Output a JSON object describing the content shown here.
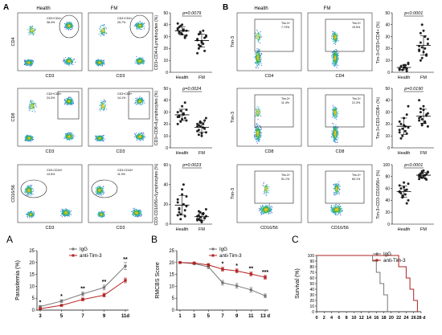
{
  "panel_letters": {
    "top_A": "A",
    "top_B": "B",
    "bottom_A": "A",
    "bottom_B": "B",
    "bottom_C": "C"
  },
  "flow": {
    "cd4": {
      "left_title": "Health",
      "right_title": "FM",
      "gate_label": "CD3+CD4+",
      "left_pct": "38.4%",
      "right_pct": "25.7%",
      "x_label": "CD3",
      "y_label": "CD4"
    },
    "cd8": {
      "gate_label": "CD3+CD8+",
      "left_pct": "24.3%",
      "right_pct": "14.1%",
      "x_label": "CD3",
      "y_label": "CD8"
    },
    "cd1656": {
      "gate_label": "CD3-CD16+",
      "left_pct": "13.5%",
      "right_pct": "11.0%",
      "x_label": "CD3",
      "y_label": "CD16/56"
    },
    "tim_cd4": {
      "left_title": "Health",
      "right_title": "FM",
      "gate_label": "Tim-3+",
      "left_pct": "7.73%",
      "right_pct": "19.5%",
      "x_label": "CD4",
      "y_label": "Tim-3"
    },
    "tim_cd8": {
      "gate_label": "Tim-3+",
      "left_pct": "11.4%",
      "right_pct": "21.3%",
      "x_label": "CD8",
      "y_label": "Tim-3"
    },
    "tim_cd1656": {
      "gate_label": "Tim-3+",
      "left_pct": "51.1%",
      "right_pct": "83.1%",
      "x_label": "CD16/56",
      "y_label": "Tim-3"
    }
  },
  "chart_data": [
    {
      "type": "scatter",
      "id": "dot1",
      "ylabel": "CD3+CD4+/Lymphocytes (%)",
      "categories": [
        "Health",
        "FM"
      ],
      "pvalue": "p=0.0079",
      "ylim": [
        0,
        50
      ],
      "yticks": [
        "0",
        "10",
        "20",
        "30",
        "40",
        "50"
      ],
      "series": [
        {
          "values": [
            36,
            38,
            33,
            40,
            35,
            29,
            31,
            37,
            34,
            39,
            32,
            36,
            30,
            35,
            41,
            33
          ]
        },
        {
          "values": [
            28,
            32,
            22,
            25,
            35,
            18,
            30,
            27,
            20,
            33,
            26,
            24,
            29,
            31,
            16,
            23,
            34
          ]
        }
      ]
    },
    {
      "type": "scatter",
      "id": "dot2",
      "ylabel": "CD3+CD8+/Lymphocytes (%)",
      "categories": [
        "Health",
        "FM"
      ],
      "pvalue": "p=0.0024",
      "ylim": [
        0,
        50
      ],
      "yticks": [
        "0",
        "10",
        "20",
        "30",
        "40",
        "50"
      ],
      "series": [
        {
          "values": [
            30,
            26,
            22,
            35,
            28,
            25,
            32,
            20,
            27,
            31,
            24,
            29,
            38,
            23,
            26
          ]
        },
        {
          "values": [
            18,
            15,
            22,
            12,
            20,
            16,
            25,
            14,
            19,
            21,
            10,
            17,
            23,
            13,
            20,
            11,
            18
          ]
        }
      ]
    },
    {
      "type": "scatter",
      "id": "dot3",
      "ylabel": "CD3-CD16/56+/Lymphocytes (%)",
      "categories": [
        "Health",
        "FM"
      ],
      "pvalue": "p=0.0023",
      "ylim": [
        0,
        60
      ],
      "yticks": [
        "0",
        "20",
        "40",
        "60"
      ],
      "series": [
        {
          "values": [
            22,
            15,
            10,
            30,
            40,
            8,
            18,
            25,
            12,
            5,
            35,
            20,
            14,
            28,
            9,
            16
          ]
        },
        {
          "values": [
            8,
            5,
            12,
            3,
            10,
            6,
            15,
            4,
            9,
            7,
            2,
            11,
            6,
            8,
            5,
            13,
            4
          ]
        }
      ]
    },
    {
      "type": "scatter",
      "id": "dot4",
      "ylabel": "Tim-3+CD3+CD4+ (%)",
      "categories": [
        "Health",
        "FM"
      ],
      "pvalue": "p<0.0001",
      "ylim": [
        0,
        50
      ],
      "yticks": [
        "0",
        "10",
        "20",
        "30",
        "40",
        "50"
      ],
      "series": [
        {
          "values": [
            3,
            5,
            2,
            6,
            4,
            1,
            7,
            3,
            5,
            2,
            4,
            6,
            3,
            8,
            2
          ]
        },
        {
          "values": [
            18,
            25,
            12,
            35,
            20,
            15,
            28,
            22,
            10,
            40,
            17,
            30,
            14,
            24,
            19,
            33,
            21
          ]
        }
      ]
    },
    {
      "type": "scatter",
      "id": "dot5",
      "ylabel": "Tim-3+CD3+CD8+ (%)",
      "categories": [
        "Health",
        "FM"
      ],
      "pvalue": "p=0.0190",
      "ylim": [
        0,
        50
      ],
      "yticks": [
        "0",
        "10",
        "20",
        "30",
        "40",
        "50"
      ],
      "series": [
        {
          "values": [
            15,
            20,
            10,
            25,
            18,
            12,
            35,
            22,
            8,
            16,
            19,
            14,
            28,
            17,
            13
          ]
        },
        {
          "values": [
            25,
            30,
            20,
            35,
            22,
            28,
            18,
            40,
            26,
            24,
            32,
            21,
            27,
            29,
            23,
            33,
            19
          ]
        }
      ]
    },
    {
      "type": "scatter",
      "id": "dot6",
      "ylabel": "Tim-3+CD3-CD16/56+ (%)",
      "categories": [
        "Health",
        "FM"
      ],
      "pvalue": "p<0.0001",
      "ylim": [
        0,
        100
      ],
      "yticks": [
        "0",
        "20",
        "40",
        "60",
        "80",
        "100"
      ],
      "series": [
        {
          "values": [
            55,
            60,
            45,
            70,
            50,
            58,
            40,
            65,
            52,
            48,
            62,
            57,
            35,
            68,
            54
          ]
        },
        {
          "values": [
            80,
            85,
            78,
            90,
            82,
            75,
            88,
            83,
            79,
            86,
            81,
            77,
            84,
            87,
            76,
            80,
            89
          ]
        }
      ]
    },
    {
      "type": "line",
      "id": "para",
      "ylabel": "Parasitemia (%)",
      "xlabel": "",
      "x": [
        "3",
        "5",
        "7",
        "9",
        "11d"
      ],
      "ylim": [
        0,
        25
      ],
      "yticks": [
        "0",
        "5",
        "10",
        "15",
        "20",
        "25"
      ],
      "series": [
        {
          "name": "IgG",
          "color": "#777777",
          "values": [
            1.5,
            3.8,
            6.8,
            9.5,
            18.5
          ],
          "err": [
            0.4,
            0.6,
            0.8,
            1.0,
            1.5
          ]
        },
        {
          "name": "anti-Tim-3",
          "color": "#b22222",
          "values": [
            0.6,
            2.0,
            4.5,
            6.3,
            12.5
          ],
          "err": [
            0.3,
            0.4,
            0.6,
            0.8,
            1.0
          ]
        }
      ],
      "annotations": [
        {
          "x": "3",
          "text": "*"
        },
        {
          "x": "5",
          "text": "*"
        },
        {
          "x": "7",
          "text": "**"
        },
        {
          "x": "9",
          "text": "**"
        },
        {
          "x": "11d",
          "text": "**"
        }
      ]
    },
    {
      "type": "line",
      "id": "rmcbs",
      "ylabel": "RMCBS Score",
      "x": [
        "1",
        "3",
        "5",
        "7",
        "9",
        "11",
        "13 d"
      ],
      "ylim": [
        0,
        25
      ],
      "yticks": [
        "0",
        "5",
        "10",
        "15",
        "20",
        "25"
      ],
      "series": [
        {
          "name": "IgG",
          "color": "#777777",
          "values": [
            20,
            19.5,
            18.2,
            11.5,
            10.2,
            8.5,
            6
          ],
          "err": [
            0.3,
            0.4,
            0.8,
            1.0,
            1.0,
            1.0,
            0.8
          ]
        },
        {
          "name": "anti-Tim-3",
          "color": "#b22222",
          "values": [
            20,
            19.8,
            19,
            17.2,
            16.5,
            15.2,
            13.8
          ],
          "err": [
            0.3,
            0.4,
            0.6,
            0.8,
            0.8,
            0.8,
            0.8
          ]
        }
      ],
      "annotations": [
        {
          "x": "7",
          "text": "*"
        },
        {
          "x": "9",
          "text": "*"
        },
        {
          "x": "11",
          "text": "**"
        },
        {
          "x": "13 d",
          "text": "***"
        }
      ]
    },
    {
      "type": "line",
      "id": "surv",
      "ylabel": "Survival (%)",
      "x": [
        "0",
        "2",
        "4",
        "6",
        "8",
        "10",
        "12",
        "14",
        "16",
        "18",
        "20",
        "22",
        "24",
        "26",
        "28 d"
      ],
      "ylim": [
        0,
        100
      ],
      "yticks": [
        "0",
        "10",
        "20",
        "30",
        "40",
        "50",
        "60",
        "70",
        "80",
        "90",
        "100"
      ],
      "series": [
        {
          "name": "IgG",
          "color": "#777777",
          "steps": [
            [
              0,
              100
            ],
            [
              15,
              100
            ],
            [
              15,
              90
            ],
            [
              16,
              90
            ],
            [
              16,
              70
            ],
            [
              17,
              70
            ],
            [
              17,
              50
            ],
            [
              18,
              50
            ],
            [
              18,
              30
            ],
            [
              19,
              30
            ],
            [
              19,
              0
            ]
          ]
        },
        {
          "name": "anti-Tim-3",
          "color": "#b22222",
          "steps": [
            [
              0,
              100
            ],
            [
              22,
              100
            ],
            [
              22,
              80
            ],
            [
              24,
              80
            ],
            [
              24,
              60
            ],
            [
              25,
              60
            ],
            [
              25,
              40
            ],
            [
              26,
              40
            ],
            [
              26,
              20
            ],
            [
              27,
              20
            ],
            [
              27,
              0
            ]
          ]
        }
      ]
    }
  ]
}
